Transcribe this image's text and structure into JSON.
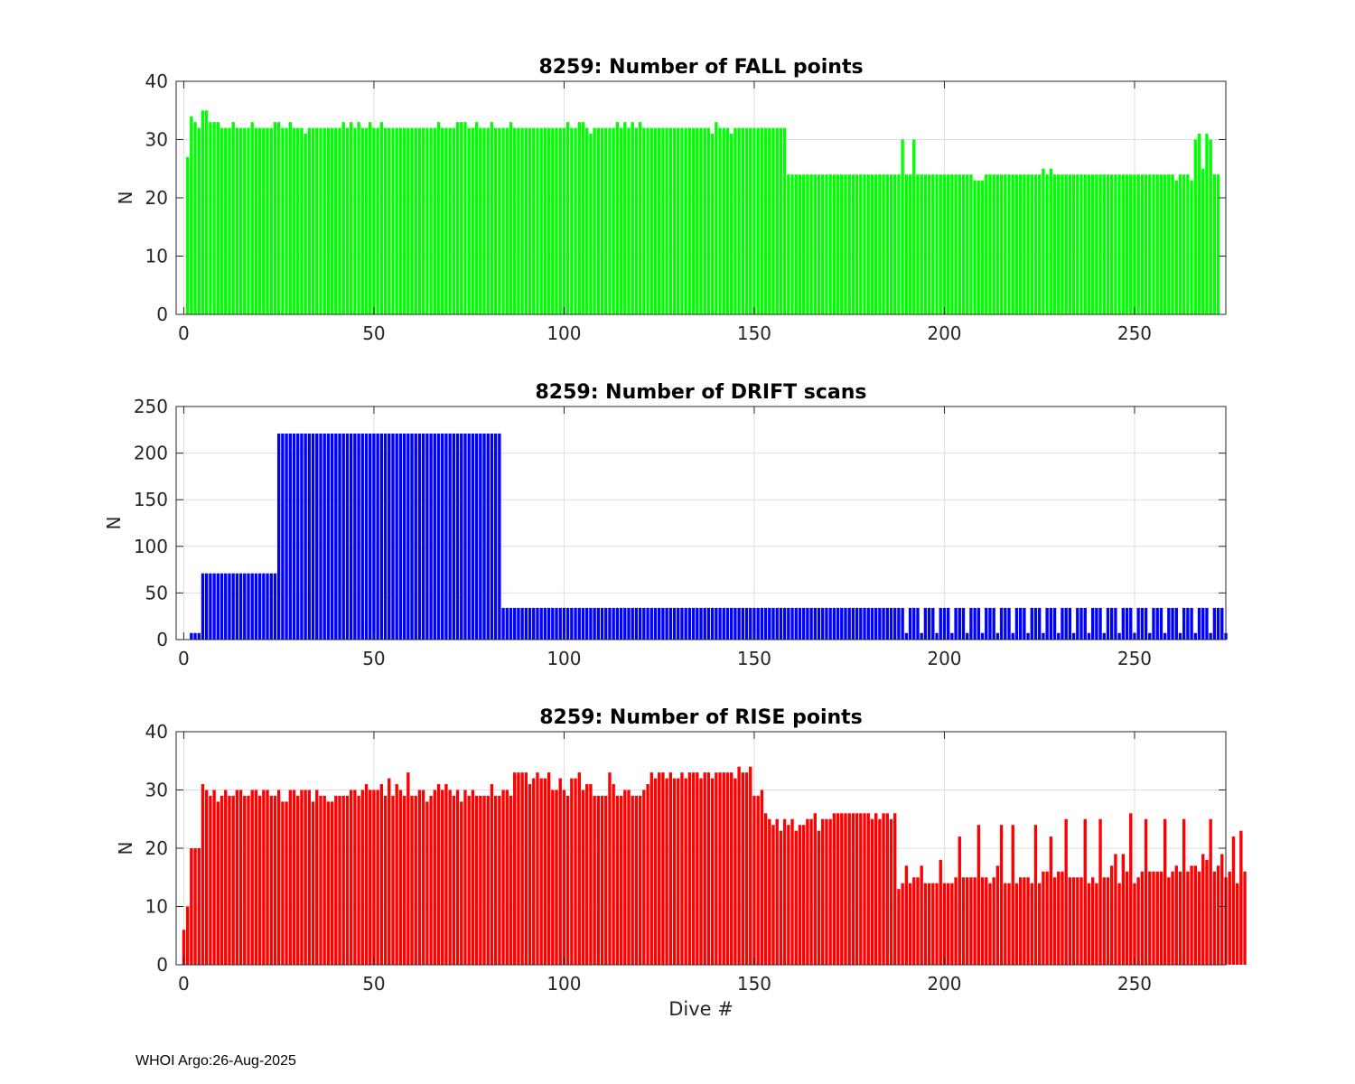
{
  "chart_data": [
    {
      "type": "bar",
      "title": "8259: Number of FALL points",
      "xlabel": "",
      "ylabel": "N",
      "xlim": [
        -2,
        274
      ],
      "ylim": [
        0,
        40
      ],
      "xticks": [
        0,
        50,
        100,
        150,
        200,
        250
      ],
      "yticks": [
        0,
        10,
        20,
        30,
        40
      ],
      "grid": true,
      "color": "#00ff00",
      "bar_width": 0.8,
      "x_start": 1,
      "segments": [
        {
          "count": 1,
          "value": 27
        },
        {
          "count": 1,
          "value": 34
        },
        {
          "count": 1,
          "value": 33
        },
        {
          "count": 1,
          "value": 32
        },
        {
          "count": 2,
          "value": 35
        },
        {
          "count": 3,
          "value": 33
        },
        {
          "count": 149,
          "value": 32
        },
        {
          "count": 30,
          "value": 24
        },
        {
          "count": 1,
          "value": 30
        },
        {
          "count": 2,
          "value": 24
        },
        {
          "count": 1,
          "value": 30
        },
        {
          "count": 15,
          "value": 24
        },
        {
          "count": 3,
          "value": 23
        },
        {
          "count": 50,
          "value": 24
        },
        {
          "count": 1,
          "value": 23
        },
        {
          "count": 3,
          "value": 24
        },
        {
          "count": 1,
          "value": 23
        },
        {
          "count": 1,
          "value": 30
        },
        {
          "count": 1,
          "value": 31
        },
        {
          "count": 1,
          "value": 25
        },
        {
          "count": 1,
          "value": 31
        },
        {
          "count": 1,
          "value": 30
        },
        {
          "count": 2,
          "value": 24
        }
      ],
      "overrides": {
        "13": 33,
        "18": 33,
        "24": 33,
        "25": 33,
        "28": 33,
        "32": 31,
        "42": 33,
        "44": 33,
        "46": 33,
        "49": 33,
        "52": 33,
        "67": 33,
        "72": 33,
        "73": 33,
        "74": 33,
        "77": 33,
        "81": 33,
        "86": 33,
        "101": 33,
        "104": 33,
        "105": 33,
        "106": 32,
        "107": 31,
        "114": 33,
        "116": 33,
        "118": 33,
        "120": 33,
        "139": 31,
        "140": 33,
        "143": 32,
        "144": 31,
        "155": 32,
        "156": 32,
        "226": 25,
        "228": 25
      }
    },
    {
      "type": "bar",
      "title": "8259: Number of DRIFT scans",
      "xlabel": "",
      "ylabel": "N",
      "xlim": [
        -2,
        274
      ],
      "ylim": [
        0,
        250
      ],
      "xticks": [
        0,
        50,
        100,
        150,
        200,
        250
      ],
      "yticks": [
        0,
        50,
        100,
        150,
        200,
        250
      ],
      "grid": true,
      "color": "#0000ff",
      "bar_width": 0.8,
      "x_start": 1,
      "segments": [
        {
          "count": 1,
          "value": 0
        },
        {
          "count": 3,
          "value": 7
        },
        {
          "count": 20,
          "value": 71
        },
        {
          "count": 59,
          "value": 221
        },
        {
          "count": 106,
          "value": 34
        },
        {
          "count": 85,
          "value": 34
        }
      ],
      "pattern": {
        "start": 190,
        "end": 274,
        "period": 4,
        "low_phase": 0,
        "low_value": 7
      },
      "overrides": {}
    },
    {
      "type": "bar",
      "title": "8259: Number of RISE points",
      "xlabel": "Dive #",
      "ylabel": "N",
      "xlim": [
        -2,
        274
      ],
      "ylim": [
        0,
        40
      ],
      "xticks": [
        0,
        50,
        100,
        150,
        200,
        250
      ],
      "yticks": [
        0,
        10,
        20,
        30,
        40
      ],
      "grid": true,
      "color": "#ff0000",
      "bar_width": 0.8,
      "x_start": 0,
      "values": [
        6,
        10,
        20,
        20,
        20,
        31,
        30,
        29,
        30,
        28,
        29,
        30,
        29,
        29,
        30,
        30,
        29,
        29,
        30,
        30,
        29,
        30,
        30,
        29,
        29,
        30,
        28,
        28,
        30,
        30,
        29,
        30,
        30,
        30,
        28,
        30,
        29,
        29,
        28,
        28,
        29,
        29,
        29,
        29,
        30,
        30,
        29,
        30,
        31,
        30,
        30,
        30,
        31,
        29,
        32,
        29,
        31,
        30,
        29,
        33,
        29,
        29,
        30,
        30,
        28,
        29,
        30,
        31,
        30,
        31,
        30,
        29,
        30,
        28,
        30,
        29,
        30,
        29,
        29,
        29,
        29,
        31,
        29,
        29,
        30,
        30,
        29,
        33,
        33,
        33,
        33,
        31,
        32,
        33,
        32,
        32,
        33,
        30,
        30,
        32,
        30,
        29,
        32,
        32,
        33,
        30,
        31,
        31,
        29,
        29,
        29,
        29,
        33,
        31,
        29,
        29,
        30,
        30,
        29,
        29,
        29,
        30,
        31,
        33,
        32,
        33,
        33,
        32,
        33,
        32,
        32,
        33,
        32,
        33,
        33,
        33,
        32,
        33,
        33,
        32,
        33,
        33,
        33,
        33,
        33,
        32,
        34,
        33,
        33,
        34,
        29,
        29,
        30,
        26,
        25,
        24,
        25,
        23,
        25,
        24,
        25,
        23,
        24,
        24,
        25,
        25,
        26,
        23,
        25,
        25,
        25,
        26,
        26,
        26,
        26,
        26,
        26,
        26,
        26,
        26,
        26,
        25,
        26,
        25,
        26,
        26,
        25,
        26,
        13,
        14,
        17,
        14,
        15,
        15,
        17,
        14,
        14,
        14,
        14,
        18,
        14,
        14,
        14,
        15,
        22,
        15,
        15,
        15,
        15,
        24,
        15,
        15,
        14,
        15,
        17,
        24,
        14,
        14,
        24,
        14,
        15,
        15,
        15,
        14,
        24,
        14,
        16,
        16,
        22,
        15,
        16,
        16,
        25,
        15,
        15,
        15,
        15,
        25,
        14,
        15,
        14,
        25,
        15,
        15,
        17,
        19,
        14,
        19,
        16,
        26,
        14,
        15,
        16,
        25,
        16,
        16,
        16,
        16,
        25,
        15,
        16,
        17,
        16,
        25,
        16,
        17,
        17,
        16,
        19,
        18,
        25,
        16,
        17,
        19,
        15,
        16,
        22,
        14,
        23,
        16
      ]
    }
  ],
  "footer": "WHOI Argo:26-Aug-2025"
}
